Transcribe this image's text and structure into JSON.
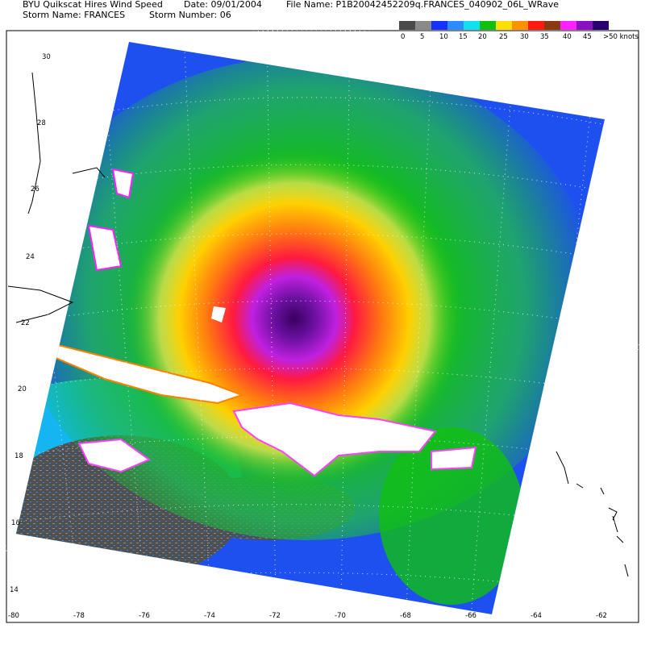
{
  "header": {
    "title": "BYU Quikscat Hires Wind Speed",
    "date": "Date: 09/01/2004",
    "file_name": "File Name: P1B20042452209q.FRANCES_040902_06L_WRave",
    "storm_name": "Storm Name: FRANCES",
    "storm_number": "Storm Number: 06"
  },
  "legend": {
    "colors": [
      "#4a4a4a",
      "#8a8a8a",
      "#1530ff",
      "#2a8cff",
      "#10e0f0",
      "#10c010",
      "#ffe000",
      "#ff9000",
      "#ff1a10",
      "#8a3a10",
      "#ff20ff",
      "#8a10c0",
      "#2a0070"
    ],
    "labels": [
      "0",
      "5",
      "10",
      "15",
      "20",
      "25",
      "30",
      "35",
      "40",
      "45",
      ">50 knots"
    ]
  },
  "map": {
    "lat_labels": [
      "30",
      "28",
      "26",
      "24",
      "22",
      "20",
      "18",
      "16",
      "14"
    ],
    "lon_labels": [
      "-80",
      "-78",
      "-76",
      "-74",
      "-72",
      "-70",
      "-68",
      "-66",
      "-64",
      "-62"
    ]
  }
}
